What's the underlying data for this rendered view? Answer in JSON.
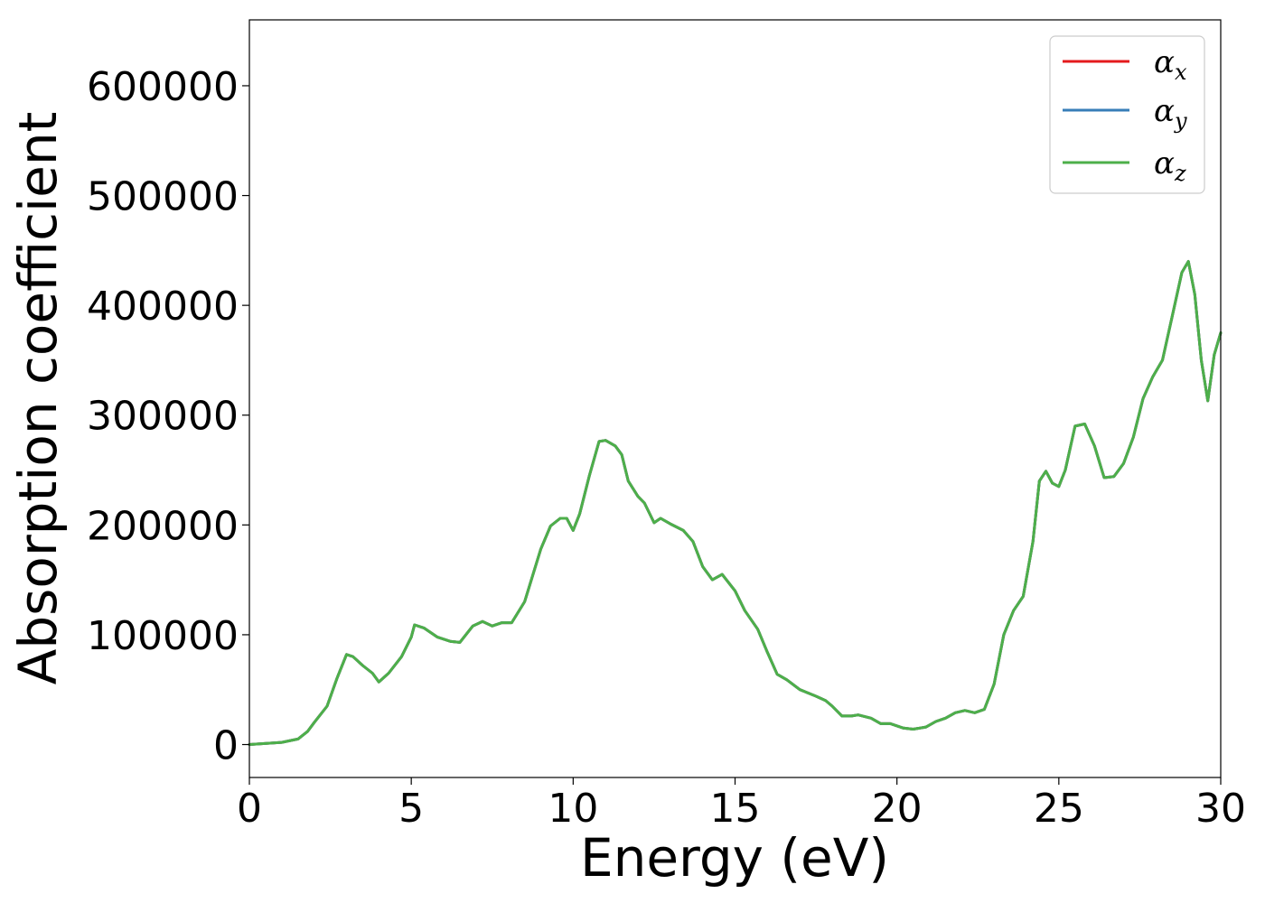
{
  "chart_data": {
    "type": "line",
    "title": "",
    "xlabel": "Energy (eV)",
    "ylabel": "Absorption coefficient",
    "xlim": [
      0,
      30
    ],
    "ylim": [
      -30000,
      660000
    ],
    "xticks": [
      "0",
      "5",
      "10",
      "15",
      "20",
      "25",
      "30"
    ],
    "xtick_values": [
      0,
      5,
      10,
      15,
      20,
      25,
      30
    ],
    "yticks": [
      "0",
      "100000",
      "200000",
      "300000",
      "400000",
      "500000",
      "600000"
    ],
    "ytick_values": [
      0,
      100000,
      200000,
      300000,
      400000,
      500000,
      600000
    ],
    "grid": false,
    "legend_position": "top-right",
    "x": [
      0,
      1.0,
      1.5,
      1.8,
      2.0,
      2.4,
      2.7,
      3.0,
      3.2,
      3.5,
      3.8,
      4.0,
      4.3,
      4.7,
      5.0,
      5.1,
      5.4,
      5.8,
      6.2,
      6.5,
      6.9,
      7.2,
      7.5,
      7.8,
      8.1,
      8.5,
      9.0,
      9.3,
      9.6,
      9.8,
      10.0,
      10.2,
      10.5,
      10.8,
      11.0,
      11.3,
      11.5,
      11.7,
      12.0,
      12.2,
      12.5,
      12.7,
      13.0,
      13.4,
      13.7,
      14.0,
      14.3,
      14.6,
      15.0,
      15.3,
      15.7,
      16.0,
      16.3,
      16.6,
      17.0,
      17.5,
      17.8,
      18.0,
      18.3,
      18.6,
      18.8,
      19.2,
      19.5,
      19.8,
      20.2,
      20.5,
      20.9,
      21.2,
      21.5,
      21.8,
      22.1,
      22.4,
      22.7,
      23.0,
      23.3,
      23.6,
      23.9,
      24.2,
      24.4,
      24.6,
      24.8,
      25.0,
      25.2,
      25.5,
      25.8,
      26.1,
      26.4,
      26.7,
      27.0,
      27.3,
      27.6,
      27.9,
      28.2,
      28.5,
      28.8,
      29.0,
      29.2,
      29.4,
      29.6,
      29.8,
      30.0
    ],
    "series": [
      {
        "name": "α_x",
        "color": "#e41a1c",
        "values": [
          0,
          2000,
          5000,
          12000,
          20000,
          35000,
          60000,
          82000,
          80000,
          72000,
          65000,
          57000,
          65000,
          80000,
          98000,
          109000,
          106000,
          98000,
          94000,
          93000,
          108000,
          112000,
          108000,
          111000,
          111000,
          130000,
          178000,
          199000,
          206000,
          206000,
          195000,
          210000,
          245000,
          276000,
          277000,
          272000,
          264000,
          240000,
          226000,
          220000,
          202000,
          206000,
          201000,
          195000,
          185000,
          162000,
          150000,
          155000,
          140000,
          122000,
          105000,
          84000,
          64000,
          59000,
          50000,
          44000,
          40000,
          35000,
          26000,
          26000,
          27000,
          24000,
          19000,
          19000,
          15000,
          14000,
          16000,
          21000,
          24000,
          29000,
          31000,
          29000,
          32000,
          55000,
          100000,
          122000,
          135000,
          185000,
          240000,
          249000,
          238000,
          235000,
          250000,
          290000,
          292000,
          272000,
          243000,
          244000,
          256000,
          280000,
          315000,
          335000,
          350000,
          390000,
          430000,
          440000,
          410000,
          350000,
          313000,
          355000,
          375000
        ]
      },
      {
        "name": "α_y",
        "color": "#377eb8",
        "values": [
          0,
          2000,
          5000,
          12000,
          20000,
          35000,
          60000,
          82000,
          80000,
          72000,
          65000,
          57000,
          65000,
          80000,
          98000,
          109000,
          106000,
          98000,
          94000,
          93000,
          108000,
          112000,
          108000,
          111000,
          111000,
          130000,
          178000,
          199000,
          206000,
          206000,
          195000,
          210000,
          245000,
          276000,
          277000,
          272000,
          264000,
          240000,
          226000,
          220000,
          202000,
          206000,
          201000,
          195000,
          185000,
          162000,
          150000,
          155000,
          140000,
          122000,
          105000,
          84000,
          64000,
          59000,
          50000,
          44000,
          40000,
          35000,
          26000,
          26000,
          27000,
          24000,
          19000,
          19000,
          15000,
          14000,
          16000,
          21000,
          24000,
          29000,
          31000,
          29000,
          32000,
          55000,
          100000,
          122000,
          135000,
          185000,
          240000,
          249000,
          238000,
          235000,
          250000,
          290000,
          292000,
          272000,
          243000,
          244000,
          256000,
          280000,
          315000,
          335000,
          350000,
          390000,
          430000,
          440000,
          410000,
          350000,
          313000,
          355000,
          375000
        ]
      },
      {
        "name": "α_z",
        "color": "#4daf4a",
        "values": [
          0,
          2000,
          5000,
          12000,
          20000,
          35000,
          60000,
          82000,
          80000,
          72000,
          65000,
          57000,
          65000,
          80000,
          98000,
          109000,
          106000,
          98000,
          94000,
          93000,
          108000,
          112000,
          108000,
          111000,
          111000,
          130000,
          178000,
          199000,
          206000,
          206000,
          195000,
          210000,
          245000,
          276000,
          277000,
          272000,
          264000,
          240000,
          226000,
          220000,
          202000,
          206000,
          201000,
          195000,
          185000,
          162000,
          150000,
          155000,
          140000,
          122000,
          105000,
          84000,
          64000,
          59000,
          50000,
          44000,
          40000,
          35000,
          26000,
          26000,
          27000,
          24000,
          19000,
          19000,
          15000,
          14000,
          16000,
          21000,
          24000,
          29000,
          31000,
          29000,
          32000,
          55000,
          100000,
          122000,
          135000,
          185000,
          240000,
          249000,
          238000,
          235000,
          250000,
          290000,
          292000,
          272000,
          243000,
          244000,
          256000,
          280000,
          315000,
          335000,
          350000,
          390000,
          430000,
          440000,
          410000,
          350000,
          313000,
          355000,
          375000
        ]
      }
    ],
    "legend": [
      {
        "symbol": "α",
        "sub": "x",
        "color": "#e41a1c"
      },
      {
        "symbol": "α",
        "sub": "y",
        "color": "#377eb8"
      },
      {
        "symbol": "α",
        "sub": "z",
        "color": "#4daf4a"
      }
    ]
  }
}
